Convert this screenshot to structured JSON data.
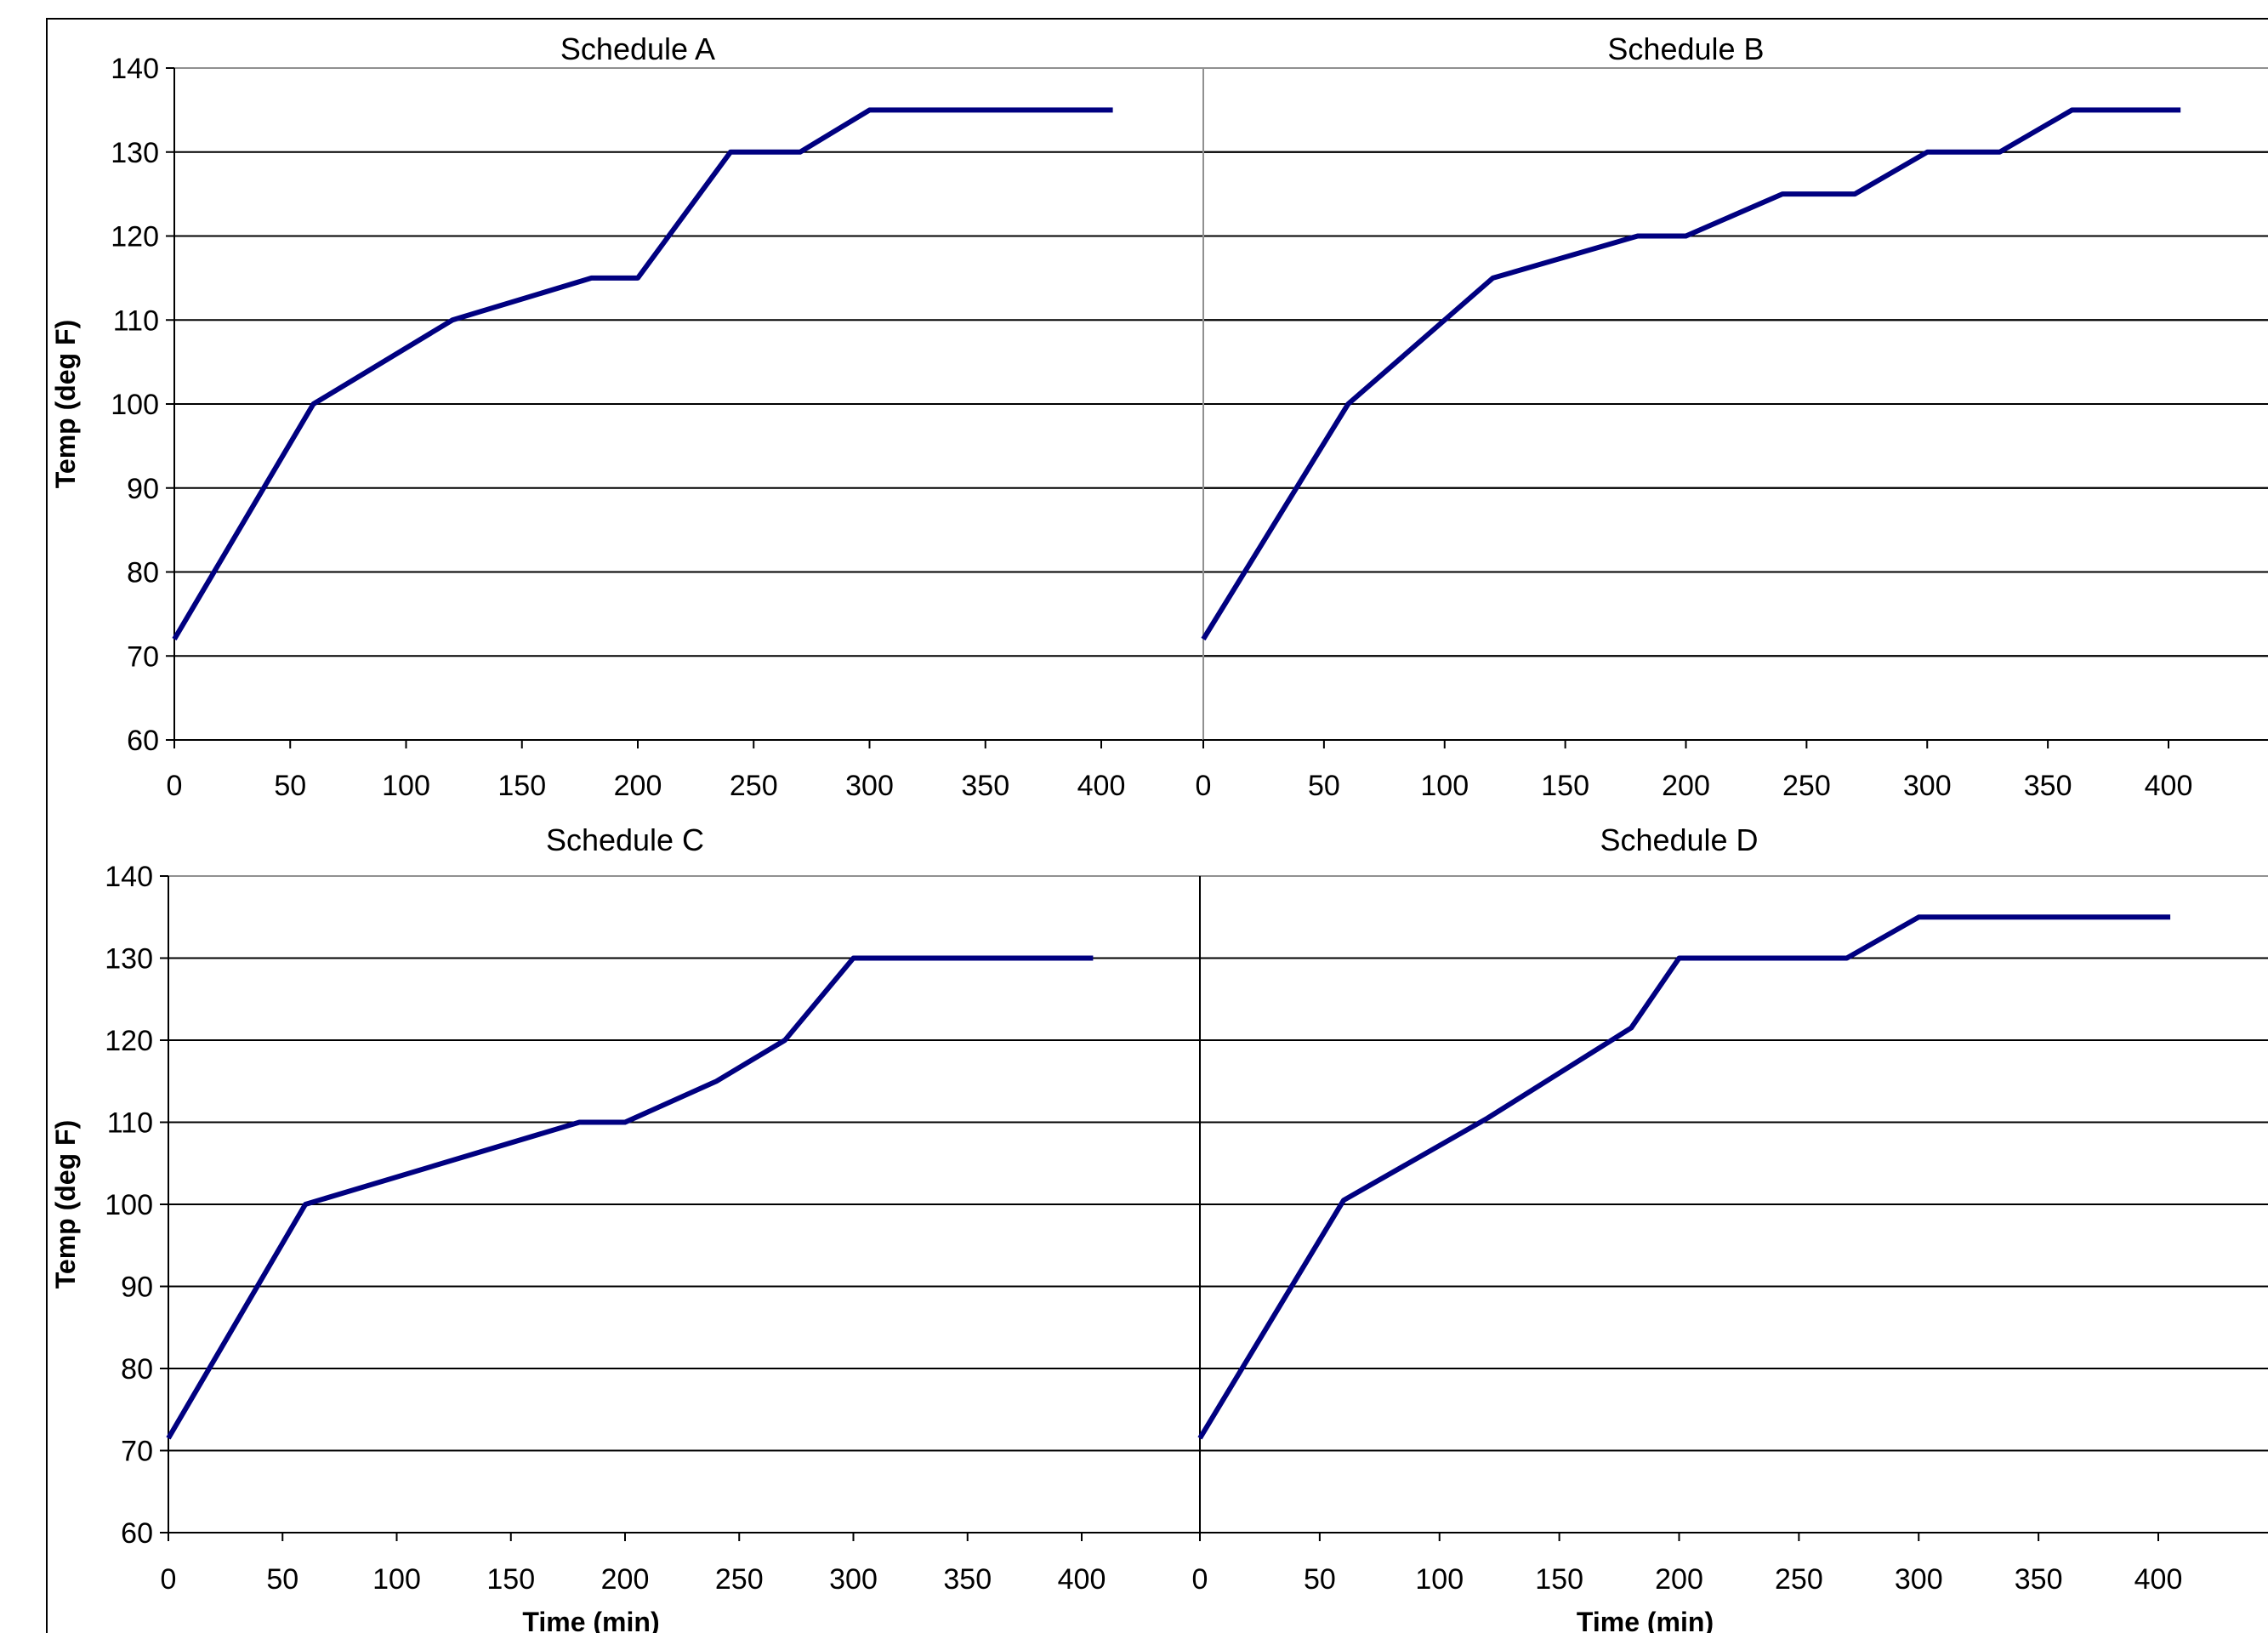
{
  "chart_data": [
    {
      "type": "line",
      "title": "Schedule A",
      "xlabel": "",
      "ylabel": "Temp (deg F)",
      "xlim": [
        0,
        400
      ],
      "ylim": [
        60,
        140
      ],
      "x_ticks": [
        "0",
        "50",
        "100",
        "150",
        "200",
        "250",
        "300",
        "350",
        "400"
      ],
      "y_ticks": [
        "60",
        "70",
        "80",
        "90",
        "100",
        "110",
        "120",
        "130",
        "140"
      ],
      "grid": "horizontal",
      "line_color": "#000080",
      "series": [
        {
          "x": [
            0,
            60,
            120,
            180,
            200,
            240,
            270,
            300,
            405
          ],
          "y": [
            72,
            100,
            110,
            115,
            115,
            130,
            130,
            135,
            135
          ]
        }
      ]
    },
    {
      "type": "line",
      "title": "Schedule B",
      "xlabel": "",
      "ylabel": "",
      "xlim": [
        0,
        400
      ],
      "ylim": [
        60,
        140
      ],
      "x_ticks": [
        "0",
        "50",
        "100",
        "150",
        "200",
        "250",
        "300",
        "350",
        "400"
      ],
      "y_ticks": [],
      "grid": "horizontal",
      "line_color": "#000080",
      "series": [
        {
          "x": [
            0,
            60,
            120,
            180,
            200,
            240,
            270,
            300,
            330,
            360,
            405
          ],
          "y": [
            72,
            100,
            115,
            120,
            120,
            125,
            125,
            130,
            130,
            135,
            135
          ]
        }
      ]
    },
    {
      "type": "line",
      "title": "Schedule C",
      "xlabel": "Time (min)",
      "ylabel": "Temp (deg F)",
      "xlim": [
        0,
        400
      ],
      "ylim": [
        60,
        140
      ],
      "x_ticks": [
        "0",
        "50",
        "100",
        "150",
        "200",
        "250",
        "300",
        "350",
        "400"
      ],
      "y_ticks": [
        "60",
        "70",
        "80",
        "90",
        "100",
        "110",
        "120",
        "130",
        "140"
      ],
      "grid": "horizontal",
      "line_color": "#000080",
      "series": [
        {
          "x": [
            0,
            60,
            180,
            200,
            240,
            270,
            300,
            405
          ],
          "y": [
            71.5,
            100,
            110,
            110,
            115,
            120,
            130,
            130
          ]
        }
      ]
    },
    {
      "type": "line",
      "title": "Schedule D",
      "xlabel": "Time (min)",
      "ylabel": "",
      "xlim": [
        0,
        400
      ],
      "ylim": [
        60,
        140
      ],
      "x_ticks": [
        "0",
        "50",
        "100",
        "150",
        "200",
        "250",
        "300",
        "350",
        "400"
      ],
      "y_ticks": [],
      "grid": "horizontal",
      "line_color": "#000080",
      "series": [
        {
          "x": [
            0,
            60,
            120,
            180,
            200,
            270,
            300,
            405
          ],
          "y": [
            71.5,
            100.5,
            110.5,
            121.5,
            130,
            130,
            135,
            135
          ]
        }
      ]
    }
  ]
}
